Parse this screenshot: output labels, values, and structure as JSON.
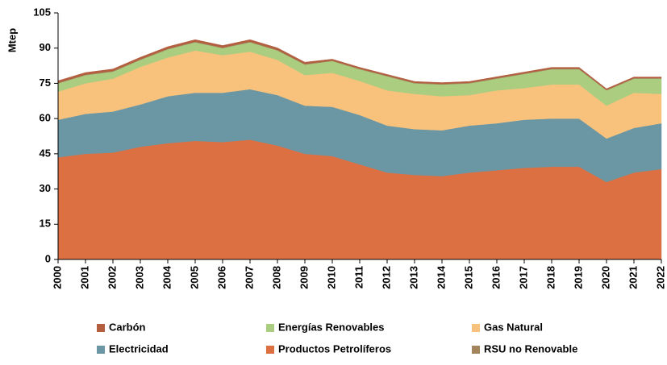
{
  "chart_data": {
    "type": "stacked_area",
    "y_label": "Mtep",
    "categories": [
      "2000",
      "2001",
      "2002",
      "2003",
      "2004",
      "2005",
      "2006",
      "2007",
      "2008",
      "2009",
      "2010",
      "2011",
      "2012",
      "2013",
      "2014",
      "2015",
      "2016",
      "2017",
      "2018",
      "2019",
      "2020",
      "2021",
      "2022"
    ],
    "series": [
      {
        "name": "Productos Petrolíferos",
        "color": "#dd7043",
        "values": [
          43.5,
          45,
          45.5,
          48,
          49.5,
          50.5,
          50,
          51,
          48.5,
          45,
          44,
          40.5,
          37,
          36,
          35.5,
          37,
          38,
          39,
          39.5,
          39.5,
          33,
          37,
          38.5
        ]
      },
      {
        "name": "Electricidad",
        "color": "#6b96a3",
        "values": [
          16,
          17,
          17.5,
          18,
          20,
          20.5,
          21,
          21.5,
          21.5,
          20.5,
          21,
          21,
          20,
          19.5,
          19.5,
          20,
          20,
          20.5,
          20.5,
          20.5,
          18.5,
          19,
          19.5
        ]
      },
      {
        "name": "Gas Natural",
        "color": "#f8c27c",
        "values": [
          12,
          13,
          14,
          16,
          16.5,
          18,
          16,
          16,
          15,
          13,
          14.5,
          14.5,
          15,
          15,
          14.5,
          13,
          14,
          13.5,
          14.5,
          14.5,
          14,
          15,
          12.5
        ]
      },
      {
        "name": "Energías Renovables",
        "color": "#abcd80",
        "values": [
          3.5,
          3.5,
          3,
          3,
          3.5,
          3.5,
          3,
          4,
          4,
          4.5,
          5,
          5,
          6,
          4.5,
          5,
          5,
          5,
          6,
          6.5,
          6.5,
          6.5,
          6,
          6.5
        ]
      },
      {
        "name": "RSU no Renovable",
        "color": "#a3845c",
        "values": [
          0.3,
          0.3,
          0.3,
          0.3,
          0.3,
          0.3,
          0.3,
          0.3,
          0.3,
          0.3,
          0.3,
          0.3,
          0.3,
          0.3,
          0.3,
          0.3,
          0.3,
          0.3,
          0.3,
          0.3,
          0.3,
          0.3,
          0.3
        ]
      },
      {
        "name": "Carbón",
        "color": "#b35e3e",
        "values": [
          0.8,
          0.8,
          0.8,
          0.8,
          0.8,
          0.8,
          0.8,
          0.8,
          0.8,
          0.7,
          0.5,
          0.5,
          0.5,
          0.5,
          0.5,
          0.5,
          0.5,
          0.5,
          0.5,
          0.5,
          0.4,
          0.4,
          0.4
        ]
      }
    ],
    "ylim": [
      0,
      105
    ],
    "yticks": [
      0,
      15,
      30,
      45,
      60,
      75,
      90,
      105
    ],
    "grid": false
  }
}
